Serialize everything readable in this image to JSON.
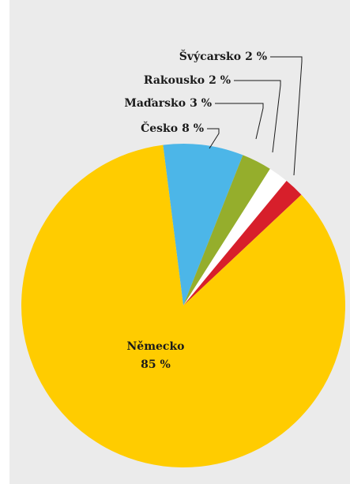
{
  "chart_data": {
    "type": "pie",
    "categories": [
      "Česko",
      "Maďarsko",
      "Rakousko",
      "Švýcarsko",
      "Německo"
    ],
    "values": [
      8,
      3,
      2,
      2,
      85
    ],
    "value_labels": [
      "8 %",
      "3 %",
      "2 %",
      "2 %",
      "85 %"
    ],
    "colors": [
      "#4cb6e8",
      "#95ae2c",
      "#ffffff",
      "#d71f2b",
      "#ffcc00"
    ]
  }
}
